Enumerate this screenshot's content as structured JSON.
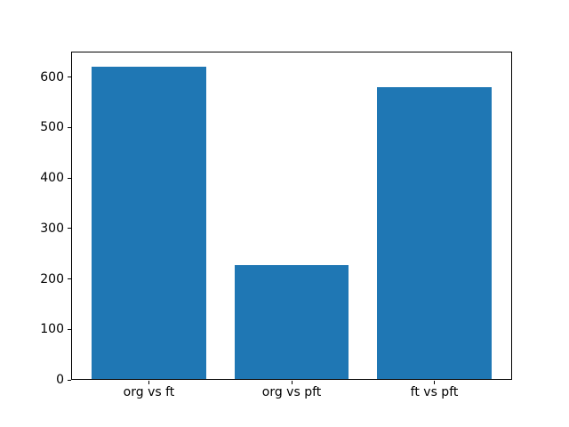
{
  "figure": {
    "background": "#ffffff"
  },
  "chart_data": {
    "type": "bar",
    "categories": [
      "org vs ft",
      "org vs pft",
      "ft vs pft"
    ],
    "values": [
      620,
      228,
      580
    ],
    "title": "",
    "xlabel": "",
    "ylabel": "",
    "ylim": [
      0,
      651
    ],
    "xlim": [
      -0.545,
      2.545
    ],
    "yticks": [
      0,
      100,
      200,
      300,
      400,
      500,
      600
    ],
    "bar_positions": [
      0,
      1,
      2
    ],
    "bar_width": 0.8,
    "grid": false,
    "legend": null,
    "colors": {
      "bar": "#1f77b4",
      "spine": "#000000",
      "tick": "#000000",
      "text": "#000000"
    }
  }
}
